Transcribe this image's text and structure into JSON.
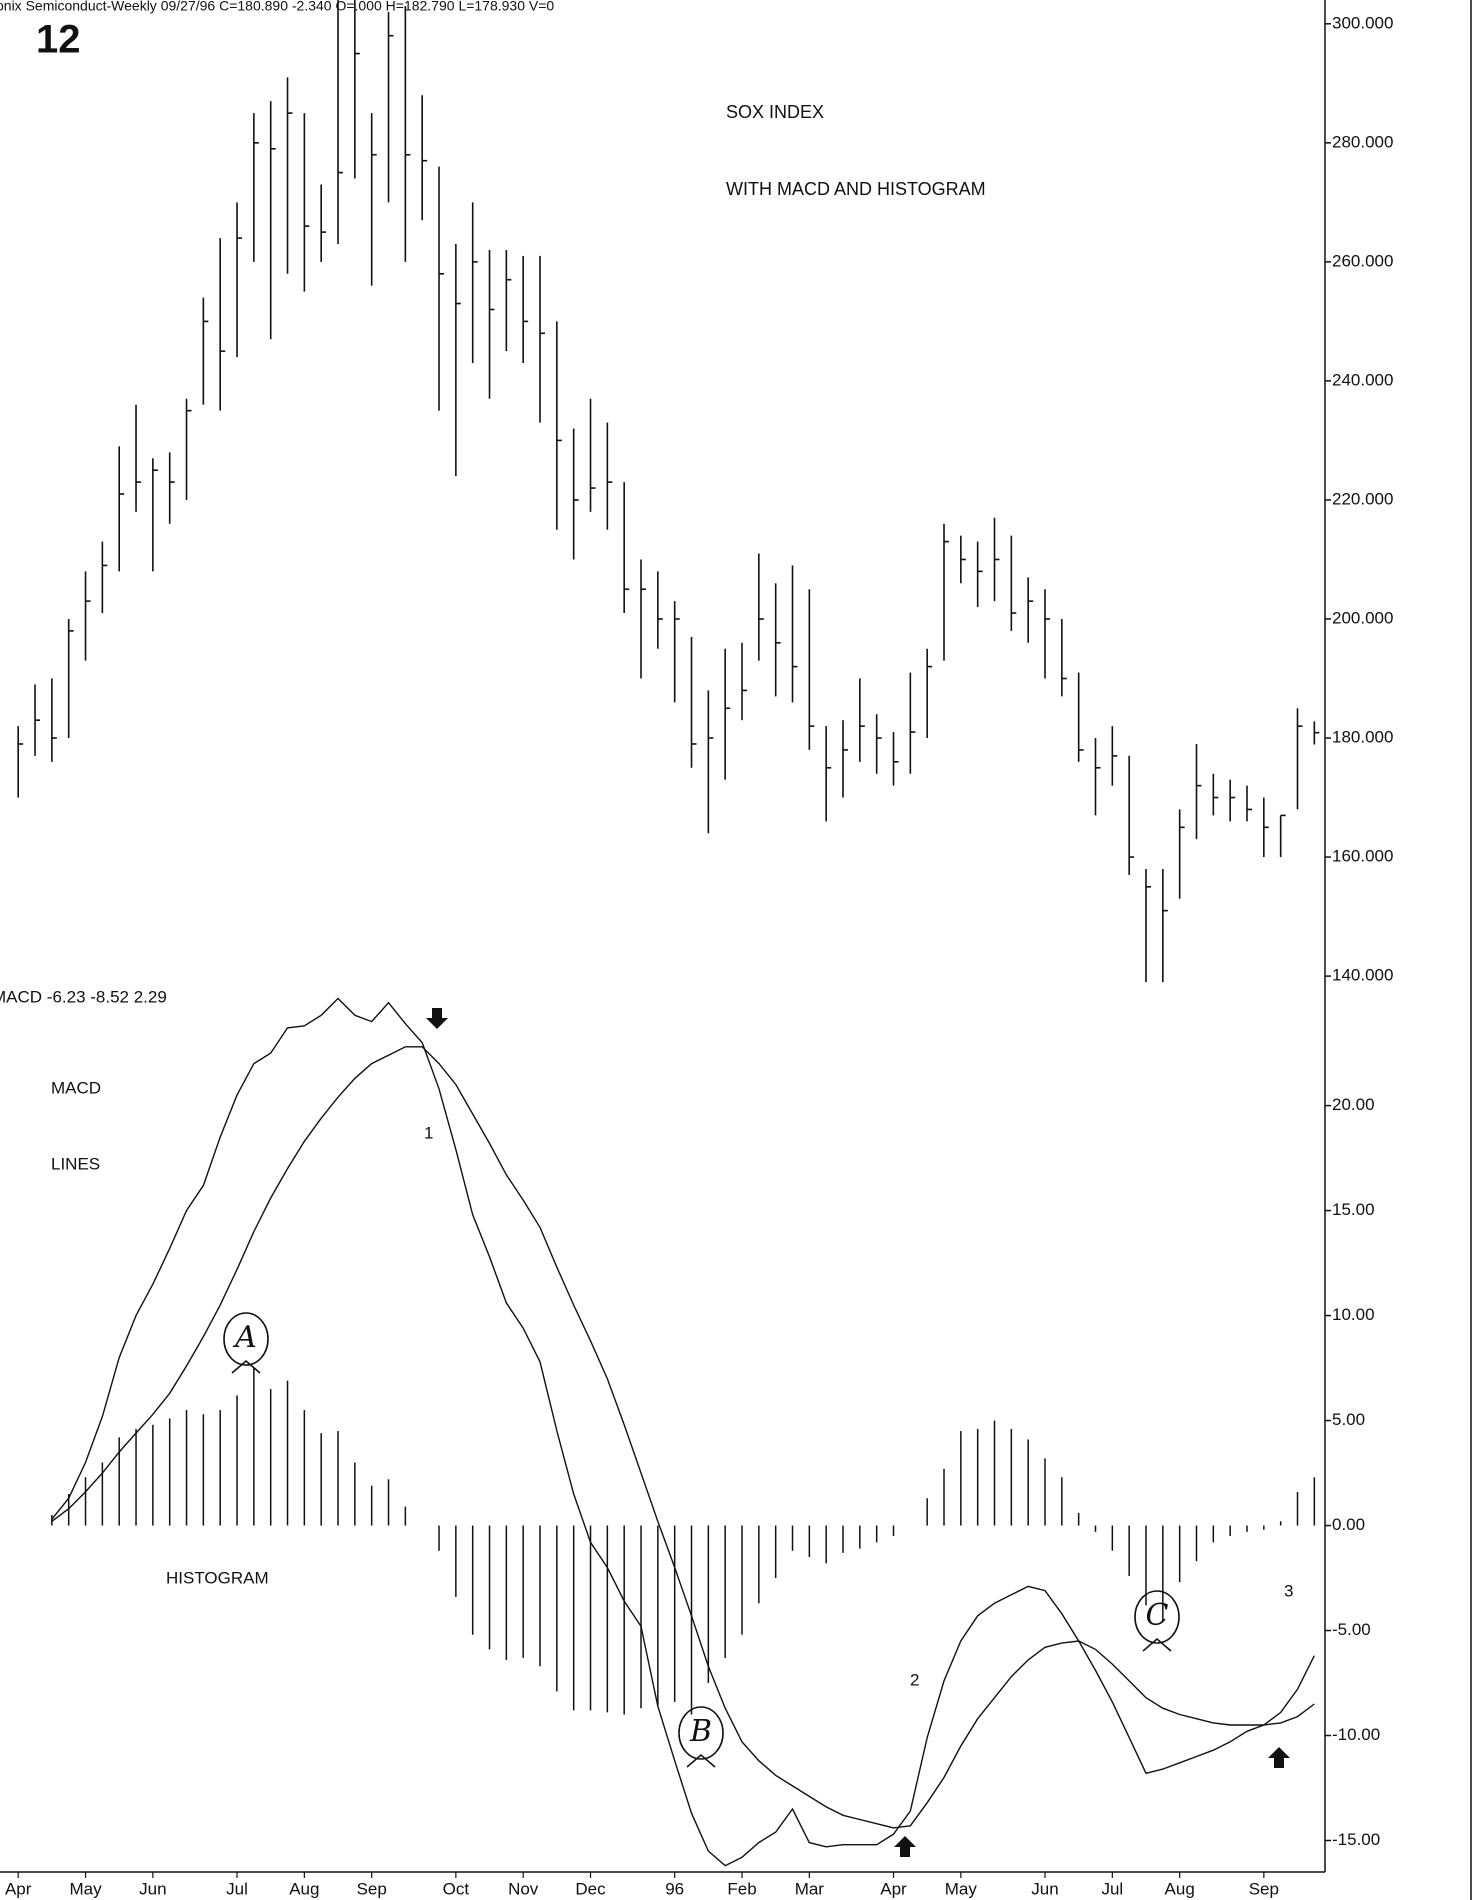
{
  "page": {
    "figure_number": "12"
  },
  "chart_data": [
    {
      "type": "ohlc",
      "header": "onix Semiconduct-Weekly  09/27/96  C=180.890  -2.340  O=.000  H=182.790  L=178.930  V=0",
      "title": "SOX INDEX",
      "subtitle": "WITH MACD AND HISTOGRAM",
      "color": "#111111",
      "high": [
        182,
        189,
        190,
        200,
        208,
        213,
        229,
        236,
        227,
        228,
        237,
        254,
        264,
        270,
        285,
        287,
        291,
        285,
        273,
        304,
        305,
        285,
        302,
        303,
        288,
        276,
        263,
        270,
        262,
        262,
        261,
        261,
        250,
        232,
        237,
        233,
        223,
        210,
        208,
        203,
        197,
        188,
        195,
        196,
        211,
        206,
        209,
        205,
        182,
        183,
        190,
        184,
        181,
        191,
        195,
        216,
        214,
        213,
        217,
        214,
        207,
        205,
        200,
        191,
        180,
        182,
        177,
        158,
        158,
        168,
        179,
        174,
        173,
        172,
        170,
        167,
        185,
        182.8
      ],
      "low": [
        170,
        177,
        176,
        180,
        193,
        201,
        208,
        218,
        208,
        216,
        220,
        236,
        235,
        244,
        260,
        247,
        258,
        255,
        260,
        263,
        274,
        256,
        270,
        260,
        267,
        235,
        224,
        243,
        237,
        245,
        243,
        233,
        215,
        210,
        218,
        215,
        201,
        190,
        195,
        186,
        175,
        164,
        173,
        183,
        193,
        187,
        186,
        178,
        166,
        170,
        176,
        174,
        172,
        174,
        180,
        193,
        206,
        202,
        203,
        198,
        196,
        190,
        187,
        176,
        167,
        172,
        157,
        139,
        139,
        153,
        163,
        167,
        166,
        166,
        160,
        160,
        168,
        178.9
      ],
      "close": [
        179,
        183,
        180,
        198,
        203,
        209,
        221,
        223,
        225,
        223,
        235,
        250,
        245,
        264,
        280,
        279,
        285,
        266,
        265,
        275,
        295,
        278,
        298,
        278,
        277,
        258,
        253,
        260,
        252,
        257,
        250,
        248,
        230,
        220,
        222,
        223,
        205,
        205,
        200,
        200,
        179,
        180,
        185,
        188,
        200,
        196,
        192,
        182,
        175,
        178,
        182,
        180,
        176,
        181,
        192,
        213,
        210,
        208,
        210,
        201,
        203,
        200,
        190,
        178,
        175,
        177,
        160,
        155,
        151,
        165,
        172,
        170,
        170,
        168,
        165,
        167,
        182,
        180.9
      ],
      "ylim": [
        138,
        304
      ],
      "yticks": [
        {
          "value": 140,
          "label": "140.000"
        },
        {
          "value": 160,
          "label": "160.000"
        },
        {
          "value": 180,
          "label": "180.000"
        },
        {
          "value": 200,
          "label": "200.000"
        },
        {
          "value": 220,
          "label": "220.000"
        },
        {
          "value": 240,
          "label": "240.000"
        },
        {
          "value": 260,
          "label": "260.000"
        },
        {
          "value": 280,
          "label": "280.000"
        },
        {
          "value": 300,
          "label": "300.000"
        }
      ]
    },
    {
      "type": "macd",
      "header": "MACD  -6.23  -8.52  2.29",
      "annotations": [
        "MACD",
        "LINES",
        "HISTOGRAM",
        "1",
        "2",
        "3",
        "A",
        "B",
        "C"
      ],
      "color": "#111111",
      "categories": [
        "Apr",
        null,
        null,
        null,
        "May",
        null,
        null,
        null,
        "Jun",
        null,
        null,
        null,
        null,
        "Jul",
        null,
        null,
        null,
        "Aug",
        null,
        null,
        null,
        "Sep",
        null,
        null,
        null,
        null,
        "Oct",
        null,
        null,
        null,
        "Nov",
        null,
        null,
        null,
        "Dec",
        null,
        null,
        null,
        null,
        "96",
        null,
        null,
        null,
        "Feb",
        null,
        null,
        null,
        "Mar",
        null,
        null,
        null,
        null,
        "Apr",
        null,
        null,
        null,
        "May",
        null,
        null,
        null,
        null,
        "Jun",
        null,
        null,
        null,
        "Jul",
        null,
        null,
        null,
        "Aug",
        null,
        null,
        null,
        null,
        "Sep",
        null,
        null,
        null
      ],
      "macd": [
        null,
        null,
        0.3,
        1.3,
        3.0,
        5.2,
        8.0,
        10.0,
        11.5,
        13.2,
        15.0,
        16.2,
        18.5,
        20.5,
        22.0,
        22.5,
        23.7,
        23.8,
        24.3,
        25.1,
        24.3,
        24.0,
        24.9,
        23.9,
        23.0,
        20.8,
        17.9,
        14.8,
        12.8,
        10.6,
        9.4,
        7.8,
        4.5,
        1.5,
        -0.8,
        -2.0,
        -3.6,
        -4.8,
        -8.6,
        -11.2,
        -13.7,
        -15.5,
        -16.2,
        -15.8,
        -15.1,
        -14.6,
        -13.5,
        -15.1,
        -15.3,
        -15.2,
        -15.2,
        -15.2,
        -14.7,
        -13.6,
        -10.1,
        -7.4,
        -5.5,
        -4.3,
        -3.7,
        -3.3,
        -2.9,
        -3.1,
        -4.2,
        -5.5,
        -6.9,
        -8.4,
        -10.1,
        -11.8,
        -11.6,
        -11.3,
        -11.0,
        -10.7,
        -10.3,
        -9.8,
        -9.5,
        -8.9,
        -7.8,
        -6.2
      ],
      "signal": [
        null,
        null,
        0.2,
        0.8,
        1.6,
        2.5,
        3.5,
        4.4,
        5.3,
        6.3,
        7.6,
        9.0,
        10.5,
        12.2,
        14.0,
        15.6,
        17.0,
        18.3,
        19.4,
        20.4,
        21.3,
        22.0,
        22.4,
        22.8,
        22.8,
        22.0,
        21.0,
        19.6,
        18.2,
        16.7,
        15.5,
        14.2,
        12.3,
        10.5,
        8.8,
        7.0,
        4.8,
        2.5,
        0.2,
        -2.0,
        -4.3,
        -6.7,
        -8.7,
        -10.3,
        -11.2,
        -11.9,
        -12.4,
        -12.9,
        -13.4,
        -13.8,
        -14.0,
        -14.2,
        -14.4,
        -14.3,
        -13.2,
        -12.0,
        -10.5,
        -9.2,
        -8.2,
        -7.2,
        -6.4,
        -5.8,
        -5.6,
        -5.5,
        -5.9,
        -6.6,
        -7.4,
        -8.2,
        -8.7,
        -9.0,
        -9.2,
        -9.4,
        -9.5,
        -9.5,
        -9.5,
        -9.4,
        -9.1,
        -8.5
      ],
      "histogram": [
        null,
        null,
        0.5,
        1.5,
        2.3,
        3.0,
        4.2,
        4.6,
        4.8,
        5.1,
        5.5,
        5.3,
        5.5,
        6.2,
        7.5,
        6.5,
        6.9,
        5.5,
        4.4,
        4.5,
        3.0,
        1.9,
        2.2,
        0.9,
        0,
        -1.2,
        -3.4,
        -5.2,
        -5.9,
        -6.4,
        -6.3,
        -6.7,
        -7.9,
        -8.8,
        -8.8,
        -8.9,
        -9.0,
        -8.7,
        -8.6,
        -8.4,
        -9.0,
        -7.5,
        -6.3,
        -5.2,
        -3.7,
        -2.5,
        -1.2,
        -1.5,
        -1.8,
        -1.3,
        -1.1,
        -0.8,
        -0.5,
        0,
        1.3,
        2.7,
        4.5,
        4.6,
        5.0,
        4.6,
        4.1,
        3.2,
        2.3,
        0.6,
        -0.3,
        -1.2,
        -2.4,
        -3.8,
        -4.5,
        -2.7,
        -1.7,
        -0.8,
        -0.5,
        -0.3,
        -0.2,
        0.2,
        1.6,
        2.3
      ],
      "ylim": [
        -16.5,
        25.6
      ],
      "yticks": [
        {
          "value": -15,
          "label": "-15.00"
        },
        {
          "value": -10,
          "label": "-10.00"
        },
        {
          "value": -5,
          "label": "-5.00"
        },
        {
          "value": 0,
          "label": "0.00"
        },
        {
          "value": 5,
          "label": "5.00"
        },
        {
          "value": 10,
          "label": "10.00"
        },
        {
          "value": 15,
          "label": "15.00"
        },
        {
          "value": 20,
          "label": "20.00"
        }
      ]
    }
  ]
}
